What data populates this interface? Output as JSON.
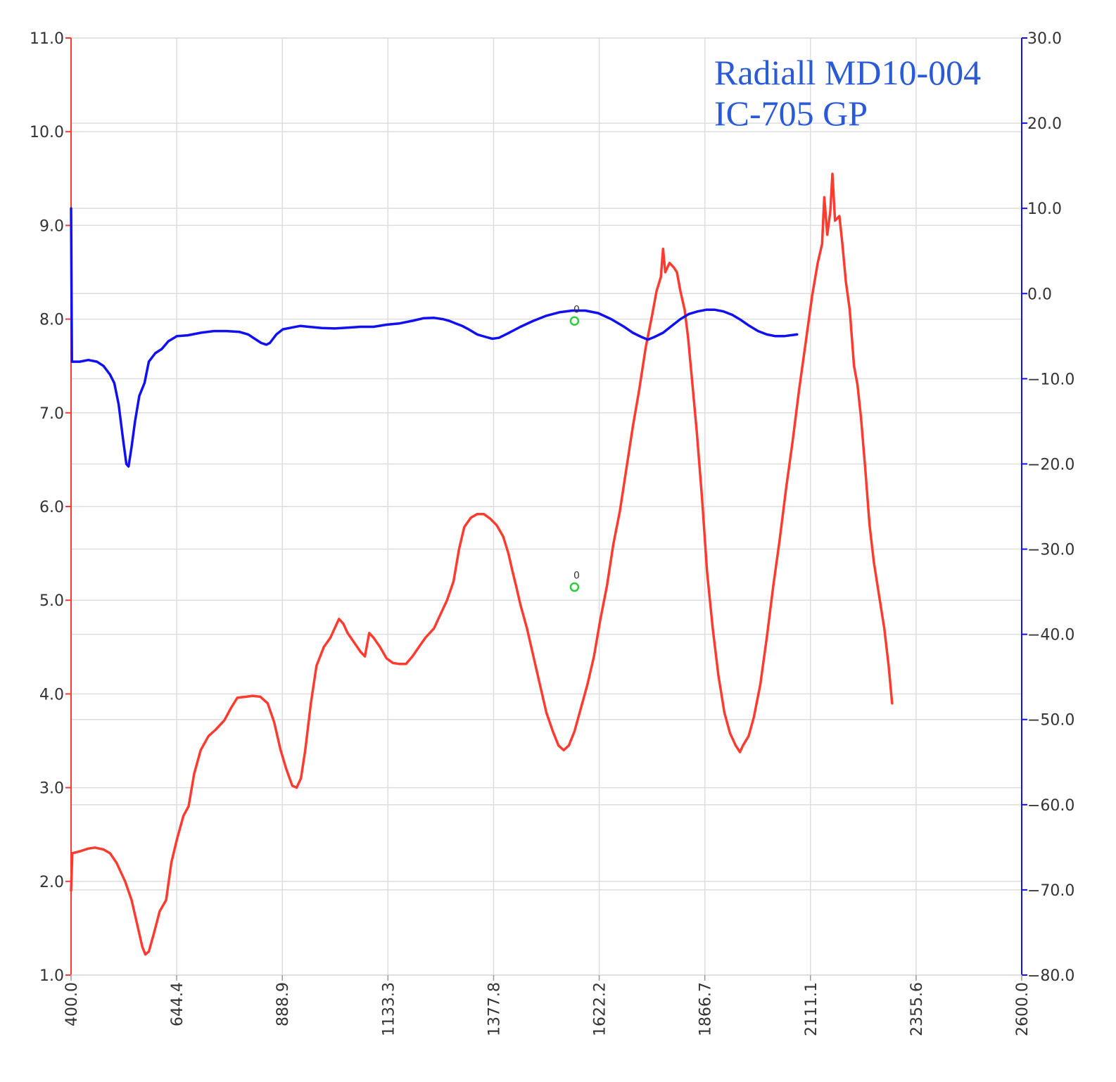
{
  "chart_data": {
    "type": "line",
    "annotations": [
      "Radiall MD10-004",
      "IC-705 GP"
    ],
    "x": {
      "min": 400.0,
      "max": 2600.0,
      "ticks": [
        "400.0",
        "644.4",
        "888.9",
        "1133.3",
        "1377.8",
        "1622.2",
        "1866.7",
        "2111.1",
        "2355.6",
        "2600.0"
      ],
      "grid": true
    },
    "y_left": {
      "min": 1.0,
      "max": 11.0,
      "ticks": [
        "1.0",
        "2.0",
        "3.0",
        "4.0",
        "5.0",
        "6.0",
        "7.0",
        "8.0",
        "9.0",
        "10.0",
        "11.0"
      ],
      "color": "#ff3b30"
    },
    "y_right": {
      "min": -80.0,
      "max": 30.0,
      "ticks": [
        "-80.0",
        "-70.0",
        "-60.0",
        "-50.0",
        "-40.0",
        "-30.0",
        "-20.0",
        "-10.0",
        "0.0",
        "10.0",
        "20.0",
        "30.0"
      ],
      "color": "#1010f0"
    },
    "series": [
      {
        "axis": "left",
        "color": "#ff3b30",
        "points": [
          [
            400,
            1.9
          ],
          [
            403,
            2.3
          ],
          [
            420,
            2.32
          ],
          [
            440,
            2.35
          ],
          [
            455,
            2.36
          ],
          [
            475,
            2.34
          ],
          [
            490,
            2.3
          ],
          [
            505,
            2.2
          ],
          [
            525,
            2.0
          ],
          [
            540,
            1.8
          ],
          [
            555,
            1.5
          ],
          [
            565,
            1.3
          ],
          [
            572,
            1.22
          ],
          [
            580,
            1.25
          ],
          [
            592,
            1.45
          ],
          [
            605,
            1.68
          ],
          [
            620,
            1.8
          ],
          [
            632,
            2.2
          ],
          [
            645,
            2.45
          ],
          [
            660,
            2.7
          ],
          [
            672,
            2.8
          ],
          [
            685,
            3.15
          ],
          [
            700,
            3.4
          ],
          [
            718,
            3.55
          ],
          [
            735,
            3.62
          ],
          [
            755,
            3.72
          ],
          [
            770,
            3.85
          ],
          [
            785,
            3.96
          ],
          [
            805,
            3.97
          ],
          [
            820,
            3.98
          ],
          [
            838,
            3.97
          ],
          [
            855,
            3.9
          ],
          [
            870,
            3.7
          ],
          [
            885,
            3.4
          ],
          [
            898,
            3.2
          ],
          [
            912,
            3.02
          ],
          [
            922,
            3.0
          ],
          [
            932,
            3.1
          ],
          [
            942,
            3.4
          ],
          [
            955,
            3.9
          ],
          [
            968,
            4.3
          ],
          [
            985,
            4.5
          ],
          [
            1000,
            4.6
          ],
          [
            1010,
            4.7
          ],
          [
            1020,
            4.8
          ],
          [
            1030,
            4.75
          ],
          [
            1040,
            4.65
          ],
          [
            1055,
            4.55
          ],
          [
            1070,
            4.45
          ],
          [
            1080,
            4.4
          ],
          [
            1090,
            4.65
          ],
          [
            1100,
            4.6
          ],
          [
            1115,
            4.5
          ],
          [
            1130,
            4.38
          ],
          [
            1145,
            4.33
          ],
          [
            1160,
            4.32
          ],
          [
            1175,
            4.32
          ],
          [
            1190,
            4.4
          ],
          [
            1205,
            4.5
          ],
          [
            1220,
            4.6
          ],
          [
            1240,
            4.7
          ],
          [
            1255,
            4.85
          ],
          [
            1270,
            5.0
          ],
          [
            1285,
            5.2
          ],
          [
            1298,
            5.55
          ],
          [
            1310,
            5.78
          ],
          [
            1325,
            5.88
          ],
          [
            1340,
            5.92
          ],
          [
            1355,
            5.92
          ],
          [
            1370,
            5.87
          ],
          [
            1385,
            5.8
          ],
          [
            1400,
            5.68
          ],
          [
            1412,
            5.5
          ],
          [
            1422,
            5.3
          ],
          [
            1430,
            5.15
          ],
          [
            1440,
            4.95
          ],
          [
            1455,
            4.7
          ],
          [
            1470,
            4.4
          ],
          [
            1485,
            4.1
          ],
          [
            1500,
            3.8
          ],
          [
            1515,
            3.6
          ],
          [
            1528,
            3.45
          ],
          [
            1540,
            3.4
          ],
          [
            1552,
            3.45
          ],
          [
            1565,
            3.6
          ],
          [
            1580,
            3.85
          ],
          [
            1595,
            4.1
          ],
          [
            1610,
            4.4
          ],
          [
            1625,
            4.8
          ],
          [
            1640,
            5.15
          ],
          [
            1655,
            5.6
          ],
          [
            1670,
            5.95
          ],
          [
            1685,
            6.4
          ],
          [
            1700,
            6.85
          ],
          [
            1715,
            7.25
          ],
          [
            1730,
            7.7
          ],
          [
            1745,
            8.05
          ],
          [
            1755,
            8.3
          ],
          [
            1765,
            8.45
          ],
          [
            1770,
            8.75
          ],
          [
            1775,
            8.5
          ],
          [
            1785,
            8.6
          ],
          [
            1795,
            8.55
          ],
          [
            1802,
            8.5
          ],
          [
            1810,
            8.3
          ],
          [
            1820,
            8.1
          ],
          [
            1828,
            7.8
          ],
          [
            1838,
            7.3
          ],
          [
            1848,
            6.8
          ],
          [
            1860,
            6.1
          ],
          [
            1872,
            5.3
          ],
          [
            1885,
            4.7
          ],
          [
            1898,
            4.2
          ],
          [
            1912,
            3.8
          ],
          [
            1925,
            3.58
          ],
          [
            1938,
            3.45
          ],
          [
            1948,
            3.38
          ],
          [
            1955,
            3.45
          ],
          [
            1968,
            3.55
          ],
          [
            1980,
            3.75
          ],
          [
            1995,
            4.1
          ],
          [
            2010,
            4.6
          ],
          [
            2025,
            5.15
          ],
          [
            2040,
            5.65
          ],
          [
            2055,
            6.2
          ],
          [
            2070,
            6.7
          ],
          [
            2085,
            7.25
          ],
          [
            2100,
            7.75
          ],
          [
            2115,
            8.25
          ],
          [
            2128,
            8.6
          ],
          [
            2138,
            8.8
          ],
          [
            2143,
            9.3
          ],
          [
            2150,
            8.9
          ],
          [
            2157,
            9.15
          ],
          [
            2162,
            9.55
          ],
          [
            2168,
            9.05
          ],
          [
            2178,
            9.1
          ],
          [
            2185,
            8.8
          ],
          [
            2193,
            8.4
          ],
          [
            2202,
            8.1
          ],
          [
            2212,
            7.5
          ],
          [
            2220,
            7.3
          ],
          [
            2228,
            6.95
          ],
          [
            2238,
            6.4
          ],
          [
            2248,
            5.8
          ],
          [
            2258,
            5.4
          ],
          [
            2270,
            5.05
          ],
          [
            2282,
            4.7
          ],
          [
            2292,
            4.3
          ],
          [
            2300,
            3.9
          ]
        ]
      },
      {
        "axis": "right",
        "color": "#1010f0",
        "points": [
          [
            400,
            10
          ],
          [
            402,
            -8
          ],
          [
            420,
            -8
          ],
          [
            440,
            -7.8
          ],
          [
            460,
            -8
          ],
          [
            475,
            -8.5
          ],
          [
            490,
            -9.5
          ],
          [
            500,
            -10.5
          ],
          [
            510,
            -13
          ],
          [
            520,
            -17
          ],
          [
            528,
            -20
          ],
          [
            533,
            -20.3
          ],
          [
            540,
            -18
          ],
          [
            548,
            -15
          ],
          [
            558,
            -12
          ],
          [
            570,
            -10.5
          ],
          [
            580,
            -8
          ],
          [
            595,
            -7
          ],
          [
            610,
            -6.5
          ],
          [
            625,
            -5.6
          ],
          [
            645,
            -5
          ],
          [
            670,
            -4.9
          ],
          [
            700,
            -4.6
          ],
          [
            730,
            -4.4
          ],
          [
            760,
            -4.4
          ],
          [
            790,
            -4.5
          ],
          [
            810,
            -4.8
          ],
          [
            825,
            -5.3
          ],
          [
            840,
            -5.8
          ],
          [
            852,
            -6
          ],
          [
            860,
            -5.8
          ],
          [
            875,
            -4.8
          ],
          [
            890,
            -4.2
          ],
          [
            910,
            -4
          ],
          [
            930,
            -3.8
          ],
          [
            950,
            -3.9
          ],
          [
            980,
            -4.05
          ],
          [
            1010,
            -4.1
          ],
          [
            1040,
            -4.0
          ],
          [
            1070,
            -3.9
          ],
          [
            1100,
            -3.9
          ],
          [
            1130,
            -3.65
          ],
          [
            1160,
            -3.5
          ],
          [
            1190,
            -3.2
          ],
          [
            1215,
            -2.9
          ],
          [
            1240,
            -2.85
          ],
          [
            1260,
            -3.0
          ],
          [
            1275,
            -3.2
          ],
          [
            1290,
            -3.5
          ],
          [
            1305,
            -3.8
          ],
          [
            1320,
            -4.2
          ],
          [
            1340,
            -4.8
          ],
          [
            1360,
            -5.1
          ],
          [
            1375,
            -5.3
          ],
          [
            1390,
            -5.2
          ],
          [
            1410,
            -4.7
          ],
          [
            1440,
            -3.9
          ],
          [
            1470,
            -3.2
          ],
          [
            1500,
            -2.6
          ],
          [
            1530,
            -2.2
          ],
          [
            1560,
            -2.0
          ],
          [
            1590,
            -2.0
          ],
          [
            1620,
            -2.3
          ],
          [
            1650,
            -3.0
          ],
          [
            1680,
            -3.9
          ],
          [
            1700,
            -4.6
          ],
          [
            1720,
            -5.1
          ],
          [
            1735,
            -5.4
          ],
          [
            1750,
            -5.1
          ],
          [
            1770,
            -4.6
          ],
          [
            1790,
            -3.8
          ],
          [
            1810,
            -3.0
          ],
          [
            1830,
            -2.4
          ],
          [
            1850,
            -2.1
          ],
          [
            1870,
            -1.9
          ],
          [
            1890,
            -1.9
          ],
          [
            1910,
            -2.1
          ],
          [
            1930,
            -2.5
          ],
          [
            1950,
            -3.1
          ],
          [
            1970,
            -3.8
          ],
          [
            1990,
            -4.4
          ],
          [
            2010,
            -4.8
          ],
          [
            2030,
            -5.0
          ],
          [
            2050,
            -5.0
          ],
          [
            2080,
            -4.8
          ]
        ]
      }
    ],
    "markers": [
      {
        "label": "0",
        "x": 1565,
        "y": 7.98,
        "axis": "left",
        "color": "#2ecc40"
      },
      {
        "label": "0",
        "x": 1565,
        "y": 5.14,
        "axis": "left",
        "color": "#2ecc40"
      }
    ]
  }
}
